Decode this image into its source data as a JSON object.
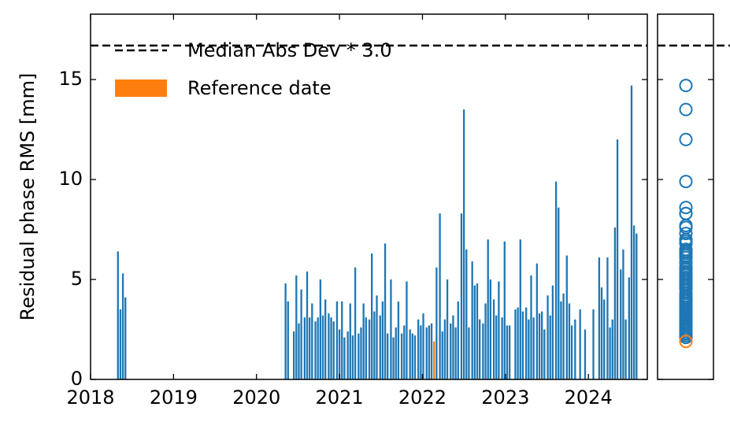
{
  "chart_data": {
    "type": "bar",
    "ylabel": "Residual phase RMS [mm]",
    "x": [
      2018.33,
      2018.36,
      2018.39,
      2018.42,
      2020.35,
      2020.38,
      2020.45,
      2020.48,
      2020.51,
      2020.54,
      2020.58,
      2020.61,
      2020.64,
      2020.67,
      2020.71,
      2020.74,
      2020.77,
      2020.8,
      2020.83,
      2020.87,
      2020.9,
      2020.93,
      2020.97,
      2021.0,
      2021.03,
      2021.06,
      2021.1,
      2021.13,
      2021.16,
      2021.19,
      2021.23,
      2021.26,
      2021.29,
      2021.32,
      2021.36,
      2021.39,
      2021.42,
      2021.45,
      2021.49,
      2021.52,
      2021.55,
      2021.58,
      2021.62,
      2021.65,
      2021.68,
      2021.71,
      2021.75,
      2021.78,
      2021.81,
      2021.85,
      2021.88,
      2021.91,
      2021.95,
      2021.98,
      2022.01,
      2022.05,
      2022.08,
      2022.11,
      2022.14,
      2022.17,
      2022.21,
      2022.24,
      2022.27,
      2022.3,
      2022.34,
      2022.37,
      2022.4,
      2022.43,
      2022.47,
      2022.5,
      2022.53,
      2022.56,
      2022.6,
      2022.63,
      2022.66,
      2022.69,
      2022.73,
      2022.76,
      2022.79,
      2022.82,
      2022.86,
      2022.89,
      2022.92,
      2022.96,
      2022.99,
      2023.02,
      2023.05,
      2023.12,
      2023.15,
      2023.18,
      2023.21,
      2023.25,
      2023.28,
      2023.31,
      2023.34,
      2023.38,
      2023.41,
      2023.44,
      2023.47,
      2023.51,
      2023.54,
      2023.57,
      2023.61,
      2023.64,
      2023.67,
      2023.7,
      2023.74,
      2023.77,
      2023.8,
      2023.84,
      2023.9,
      2023.96,
      2024.06,
      2024.13,
      2024.16,
      2024.19,
      2024.23,
      2024.26,
      2024.29,
      2024.32,
      2024.35,
      2024.39,
      2024.42,
      2024.45,
      2024.49,
      2024.52,
      2024.55,
      2024.58
    ],
    "values": [
      6.4,
      3.5,
      5.3,
      4.1,
      4.8,
      3.9,
      2.4,
      5.2,
      2.8,
      4.5,
      3.1,
      5.4,
      3.1,
      3.8,
      2.9,
      3.1,
      5.0,
      3.2,
      4.0,
      3.3,
      3.1,
      2.9,
      3.9,
      2.5,
      3.9,
      2.1,
      2.4,
      3.8,
      2.2,
      5.6,
      2.3,
      2.6,
      3.8,
      3.1,
      3.0,
      6.3,
      3.4,
      4.2,
      3.2,
      3.9,
      6.8,
      2.3,
      5.0,
      2.1,
      2.6,
      3.9,
      2.3,
      2.7,
      4.9,
      2.5,
      2.3,
      2.2,
      3.0,
      2.7,
      3.3,
      2.6,
      2.7,
      2.8,
      1.9,
      5.6,
      8.3,
      2.4,
      3.0,
      5.0,
      2.8,
      3.2,
      2.6,
      3.9,
      8.3,
      13.5,
      6.5,
      2.6,
      5.9,
      4.7,
      4.8,
      3.0,
      2.8,
      3.8,
      7.0,
      5.0,
      4.0,
      3.2,
      4.9,
      3.1,
      6.9,
      2.7,
      2.7,
      3.5,
      3.6,
      7.0,
      3.4,
      3.6,
      3.0,
      5.2,
      3.1,
      5.8,
      3.3,
      3.4,
      2.5,
      4.2,
      3.2,
      4.7,
      9.9,
      8.6,
      3.9,
      4.3,
      6.2,
      3.8,
      2.7,
      3.0,
      3.5,
      2.5,
      3.5,
      6.1,
      4.6,
      4.0,
      6.1,
      2.6,
      3.0,
      7.6,
      12.0,
      5.5,
      6.5,
      3.0,
      5.1,
      14.7,
      7.7,
      7.3
    ],
    "color": "#1f77b4",
    "reference_index": 58,
    "reference_color": "#ff7f0e",
    "reference_label": "Reference date",
    "threshold": 16.7,
    "threshold_label": "Median Abs Dev * 3.0",
    "bar_width": 0.022,
    "xlim": [
      2018.0,
      2024.71
    ],
    "xticks": [
      2018,
      2019,
      2020,
      2021,
      2022,
      2023,
      2024
    ],
    "ylim": [
      0,
      18.27
    ],
    "yticks": [
      0,
      5,
      10,
      15
    ]
  }
}
